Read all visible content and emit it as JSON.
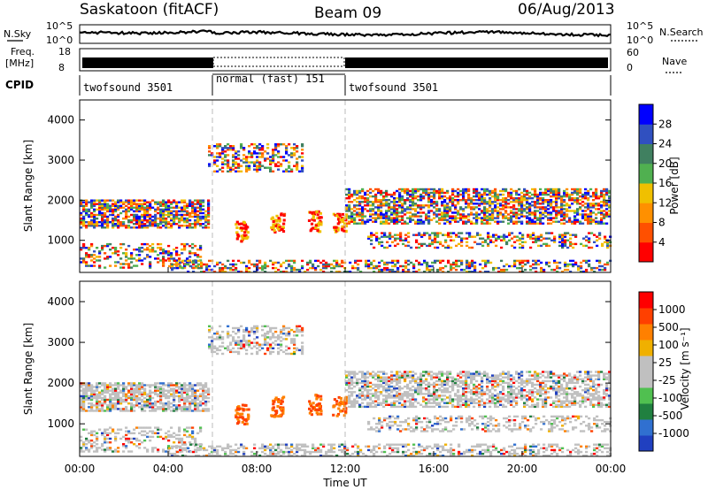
{
  "header": {
    "site": "Saskatoon (fitACF)",
    "beam": "Beam 09",
    "date": "06/Aug/2013"
  },
  "noise_panel": {
    "left_label": "N.Sky",
    "left_ticks": [
      "10^5",
      "10^0"
    ],
    "right_ticks": [
      "10^5",
      "10^0"
    ],
    "right_label": "N.Search"
  },
  "freq_panel": {
    "left_label_line1": "Freq.",
    "left_label_line2": "[MHz]",
    "left_ticks": [
      "18",
      "8"
    ],
    "right_ticks": [
      "60",
      "0"
    ],
    "right_label": "Nave"
  },
  "cpid_panel": {
    "label": "CPID",
    "segments": [
      {
        "name": "twofsound 3501",
        "start_h": 0,
        "end_h": 6
      },
      {
        "name": "normal (fast) 151",
        "start_h": 6,
        "end_h": 12
      },
      {
        "name": "twofsound 3501",
        "start_h": 12,
        "end_h": 24
      }
    ]
  },
  "colors": {
    "power_scale": [
      "#0000ff",
      "#3050c0",
      "#408060",
      "#50b050",
      "#f0c000",
      "#ff9000",
      "#ff5000",
      "#ff0000"
    ],
    "velocity_scale": [
      "#2040c0",
      "#3070d0",
      "#208040",
      "#50c050",
      "#c0c0c0",
      "#c0c0c0",
      "#f0b000",
      "#ff8000",
      "#ff4000",
      "#ff0000"
    ],
    "ground_scatter": "#c0c0c0"
  },
  "chart_data": [
    {
      "type": "heatmap",
      "name": "Power",
      "ylabel": "Slant Range [km]",
      "yticks": [
        "1000",
        "2000",
        "3000",
        "4000"
      ],
      "ylim": [
        200,
        4500
      ],
      "xlim_h": [
        0,
        24
      ],
      "colorbar_label": "Power [dB]",
      "colorbar_ticks": [
        "28",
        "24",
        "20",
        "16",
        "12",
        "8",
        "4"
      ],
      "colorbar_range": [
        0,
        30
      ]
    },
    {
      "type": "heatmap",
      "name": "Velocity",
      "ylabel": "Slant Range [km]",
      "yticks": [
        "1000",
        "2000",
        "3000",
        "4000"
      ],
      "ylim": [
        200,
        4500
      ],
      "xlim_h": [
        0,
        24
      ],
      "xlabel": "Time UT",
      "xticks": [
        "00:00",
        "04:00",
        "08:00",
        "12:00",
        "16:00",
        "20:00",
        "00:00"
      ],
      "colorbar_label": "Velocity [m s⁻¹]",
      "colorbar_ticks": [
        "1000",
        "500",
        "100",
        "25",
        "-25",
        "-100",
        "-500",
        "-1000"
      ],
      "colorbar_range": [
        -1000,
        1000
      ]
    }
  ]
}
